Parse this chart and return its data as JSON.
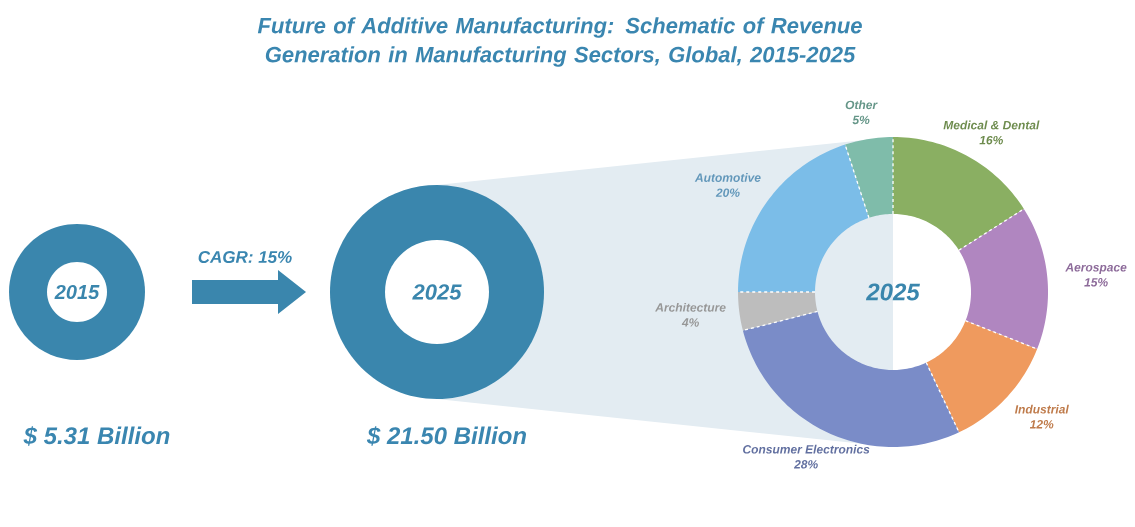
{
  "chart_data": {
    "type": "donut",
    "title": "Future of Additive Manufacturing: Schematic of Revenue Generation in Manufacturing Sectors, Global, 2015-2025",
    "categories": [
      "Medical & Dental",
      "Aerospace",
      "Industrial",
      "Consumer Electronics",
      "Architecture",
      "Automotive",
      "Other"
    ],
    "values": [
      16,
      15,
      12,
      28,
      4,
      20,
      5
    ],
    "value_labels": [
      "16%",
      "15%",
      "12%",
      "28%",
      "4%",
      "20%",
      "5%"
    ],
    "colors": [
      "#8aaf62",
      "#b086c0",
      "#ef9a5e",
      "#7a8cc8",
      "#bdbdbd",
      "#7bbde8",
      "#7fbcaa"
    ],
    "annotations": [
      "2015",
      "CAGR: 15%",
      "2025",
      "$ 5.31 Billion",
      "$ 21.50 Billion",
      "2025"
    ]
  }
}
